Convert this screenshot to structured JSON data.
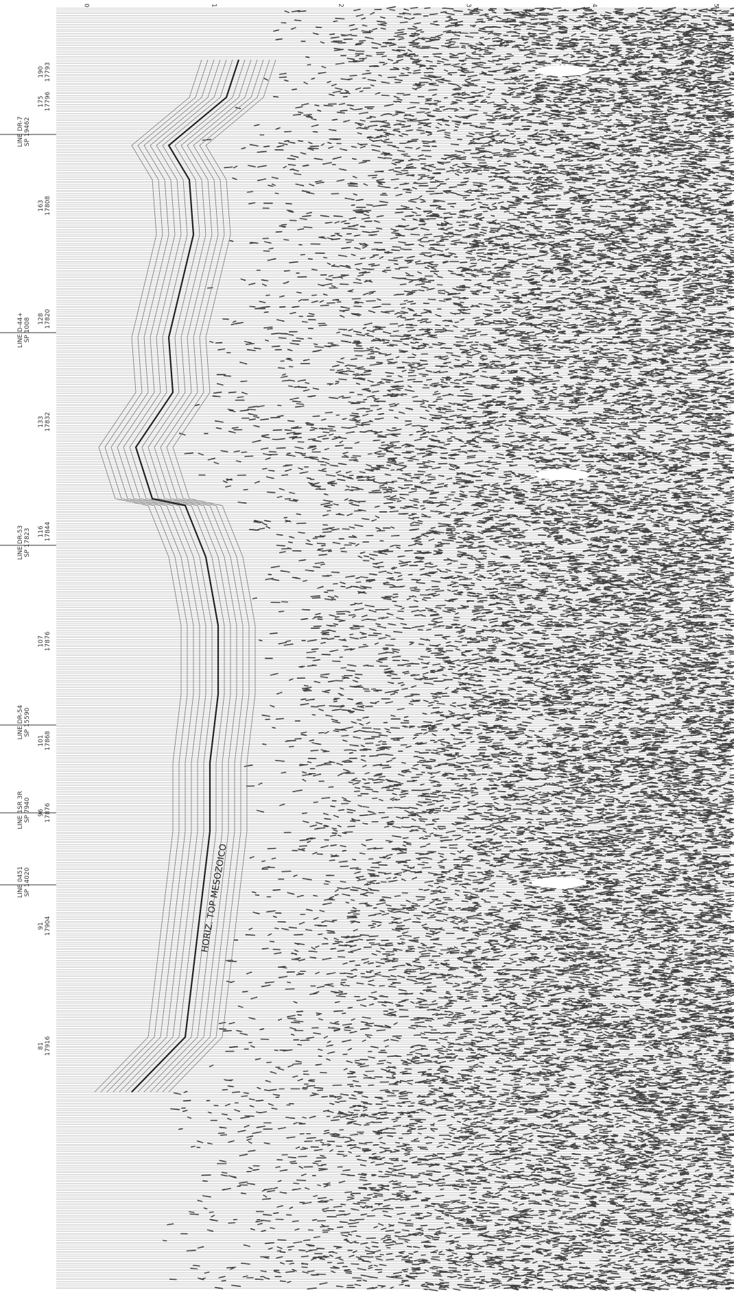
{
  "time_axis": {
    "labels": [
      "0",
      "1",
      "2",
      "3",
      "4",
      "5"
    ]
  },
  "line_ties": [
    {
      "line": "LINE DR-7",
      "sp": "SP 19462"
    },
    {
      "line": "LINE D-44+",
      "sp": "SP 1008"
    },
    {
      "line": "LINE DR-53",
      "sp": "SP 17823"
    },
    {
      "line": "LINE DR-54",
      "sp": "SP 15590"
    },
    {
      "line": "LINE 1SR 3R",
      "sp": "SP 7940"
    },
    {
      "line": "LINE 0451",
      "sp": "SP 14020"
    }
  ],
  "shot_points": [
    {
      "sp": "190",
      "trace": "17793"
    },
    {
      "sp": "175",
      "trace": "17796"
    },
    {
      "sp": "163",
      "trace": "17808"
    },
    {
      "sp": "128",
      "trace": "17820"
    },
    {
      "sp": "133",
      "trace": "17832"
    },
    {
      "sp": "116",
      "trace": "17844"
    },
    {
      "sp": "107",
      "trace": "17876"
    },
    {
      "sp": "101",
      "trace": "17868"
    },
    {
      "sp": "96",
      "trace": "17876"
    },
    {
      "sp": "91",
      "trace": "17904"
    },
    {
      "sp": "81",
      "trace": "17916"
    }
  ],
  "horizon_label": "HORIZ. TOP MESOZOICO"
}
